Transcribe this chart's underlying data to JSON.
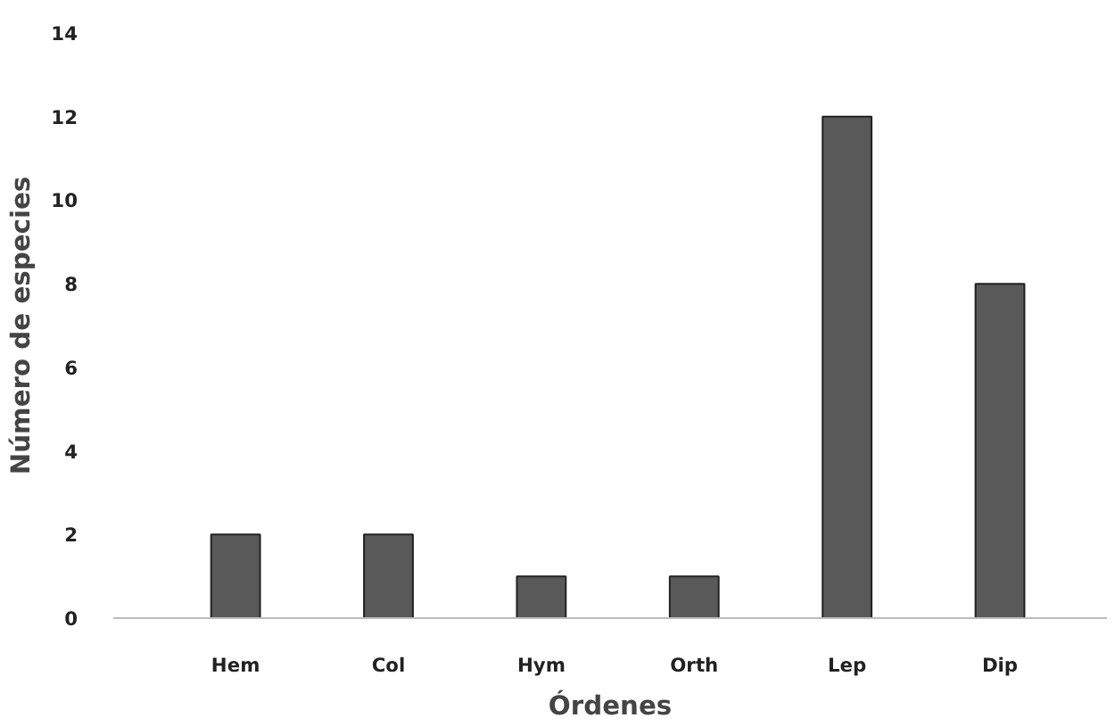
{
  "chart_data": {
    "type": "bar",
    "xlabel": "Órdenes",
    "ylabel": "Número de especies",
    "categories": [
      "Hem",
      "Col",
      "Hym",
      "Orth",
      "Lep",
      "Dip"
    ],
    "values": [
      2,
      2,
      1,
      1,
      12,
      8
    ],
    "color": "#595959",
    "ylim": [
      0,
      14
    ],
    "yticks": [
      0,
      2,
      4,
      6,
      8,
      10,
      12,
      14
    ],
    "grid": false
  }
}
